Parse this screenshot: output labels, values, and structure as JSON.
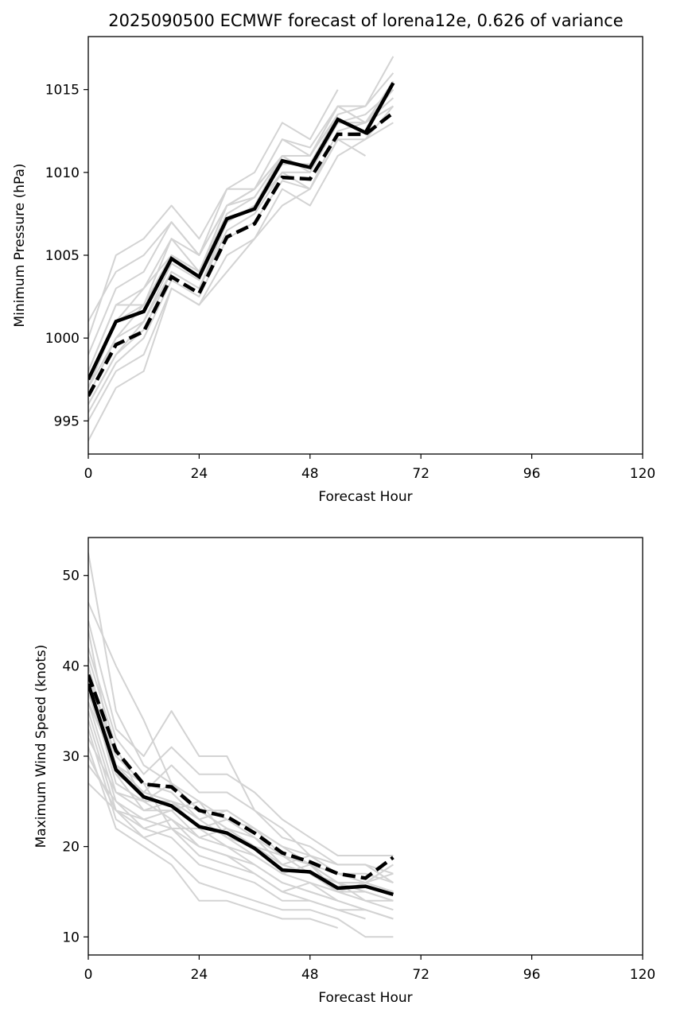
{
  "title": "2025090500 ECMWF forecast of lorena12e, 0.626 of variance",
  "chart_data": [
    {
      "type": "line",
      "name": "pressure",
      "xlabel": "Forecast Hour",
      "ylabel": "Minimum Pressure (hPa)",
      "xlim": [
        0,
        120
      ],
      "ylim": [
        993,
        1018.2
      ],
      "xticks": [
        0,
        24,
        48,
        72,
        96,
        120
      ],
      "yticks": [
        995,
        1000,
        1005,
        1010,
        1015
      ],
      "x": [
        0,
        6,
        12,
        18,
        24,
        30,
        36,
        42,
        48,
        54,
        60,
        66
      ],
      "ensemble_color": "#d3d3d3",
      "main_color": "#000000",
      "series": [
        {
          "name": "solid",
          "style": "solid",
          "values": [
            997.5,
            1001.0,
            1001.6,
            1004.8,
            1003.7,
            1007.2,
            1007.8,
            1010.7,
            1010.3,
            1013.2,
            1012.4,
            1015.4
          ]
        },
        {
          "name": "dashed",
          "style": "dashed",
          "values": [
            996.5,
            999.6,
            1000.4,
            1003.7,
            1002.7,
            1006.1,
            1006.9,
            1009.7,
            1009.6,
            1012.3,
            1012.3,
            1013.6
          ]
        }
      ],
      "ensemble": [
        [
          993.8,
          997.0,
          998.0,
          1003.0,
          1002.0,
          1004.0,
          1006.0,
          1008.0,
          1009.0,
          1012.0,
          1011.0
        ],
        [
          995.0,
          998.0,
          999.0,
          1003.0,
          1002.0,
          1005.0,
          1006.0,
          1009.0,
          1008.0,
          1011.0,
          1012.0,
          1014.0
        ],
        [
          995.5,
          998.5,
          1000.0,
          1003.5,
          1002.5,
          1006.0,
          1007.0,
          1009.5,
          1009.0,
          1012.5,
          1013.0,
          1014.5
        ],
        [
          996.0,
          999.0,
          1000.5,
          1004.0,
          1003.0,
          1006.5,
          1007.5,
          1010.0,
          1010.0,
          1013.0,
          1013.5,
          1015.0
        ],
        [
          996.5,
          1000.0,
          1001.0,
          1004.5,
          1003.5,
          1007.0,
          1008.0,
          1010.5,
          1010.5,
          1013.5,
          1014.0,
          1016.0
        ],
        [
          997.0,
          1001.0,
          1002.0,
          1005.0,
          1004.0,
          1007.5,
          1008.5,
          1011.0,
          1011.0,
          1014.0,
          1014.0,
          1017.0
        ],
        [
          998.0,
          1002.0,
          1003.0,
          1006.0,
          1005.0,
          1008.0,
          1009.0,
          1012.0,
          1011.5,
          1014.0,
          1013.0,
          1015.5
        ],
        [
          999.0,
          1003.0,
          1004.0,
          1007.0,
          1005.0,
          1009.0,
          1010.0,
          1013.0,
          1012.0,
          1015.0
        ],
        [
          1000.0,
          1005.0,
          1006.0,
          1008.0,
          1006.0,
          1009.0,
          1009.0,
          1012.0,
          1011.0,
          1014.0,
          1014.0
        ],
        [
          1001.0,
          1004.0,
          1005.0,
          1007.0,
          1005.0,
          1008.0,
          1008.5,
          1011.0,
          1011.0,
          1013.5
        ],
        [
          997.0,
          1000.0,
          1002.0,
          1006.0,
          1004.0,
          1008.0,
          1009.0,
          1011.0,
          1010.0,
          1013.0,
          1013.0,
          1014.0
        ],
        [
          998.0,
          1002.0,
          1002.0,
          1005.0,
          1004.0,
          1007.0,
          1008.0,
          1010.0,
          1009.0,
          1012.0,
          1012.0,
          1013.0
        ],
        [
          996.0,
          999.0,
          1001.0,
          1004.0,
          1003.0,
          1007.0,
          1008.0,
          1011.0,
          1010.0,
          1013.0,
          1013.0
        ],
        [
          997.0,
          1001.0,
          1003.0,
          1005.0,
          1004.0,
          1008.0,
          1009.0,
          1011.0,
          1011.0,
          1014.0,
          1013.0,
          1015.0
        ]
      ]
    },
    {
      "type": "line",
      "name": "wind",
      "xlabel": "Forecast Hour",
      "ylabel": "Maximum Wind Speed (knots)",
      "xlim": [
        0,
        120
      ],
      "ylim": [
        8,
        54.2
      ],
      "xticks": [
        0,
        24,
        48,
        72,
        96,
        120
      ],
      "yticks": [
        10,
        20,
        30,
        40,
        50
      ],
      "x": [
        0,
        6,
        12,
        18,
        24,
        30,
        36,
        42,
        48,
        54,
        60,
        66
      ],
      "ensemble_color": "#d3d3d3",
      "main_color": "#000000",
      "series": [
        {
          "name": "solid",
          "style": "solid",
          "values": [
            38.0,
            28.5,
            25.5,
            24.5,
            22.2,
            21.5,
            19.8,
            17.4,
            17.2,
            15.4,
            15.6,
            14.7
          ]
        },
        {
          "name": "dashed",
          "style": "dashed",
          "values": [
            39.0,
            30.6,
            26.9,
            26.6,
            24.0,
            23.3,
            21.5,
            19.3,
            18.3,
            17.0,
            16.5,
            18.8
          ]
        }
      ],
      "ensemble": [
        [
          52.5,
          35.0,
          29.0,
          27.0,
          25.0,
          23.0,
          22.0,
          20.0,
          18.0,
          16.0,
          14.0,
          14.0
        ],
        [
          47.0,
          40.0,
          34.0,
          27.0,
          24.0,
          24.0,
          22.0,
          20.0,
          19.0,
          17.0
        ],
        [
          45.0,
          33.0,
          30.0,
          35.0,
          30.0,
          30.0,
          24.0,
          22.0,
          19.0,
          18.0,
          18.0,
          16.0
        ],
        [
          42.0,
          32.0,
          28.0,
          31.0,
          28.0,
          28.0,
          26.0,
          23.0,
          21.0,
          19.0,
          19.0,
          19.0
        ],
        [
          40.0,
          29.0,
          26.0,
          29.0,
          26.0,
          26.0,
          24.0,
          21.0,
          20.0,
          18.0,
          18.0,
          17.0
        ],
        [
          38.0,
          27.0,
          25.0,
          27.0,
          24.0,
          22.0,
          21.0,
          19.0,
          18.0,
          17.0,
          16.0,
          15.0
        ],
        [
          36.0,
          26.0,
          24.0,
          25.0,
          23.0,
          21.0,
          20.0,
          18.0,
          17.0,
          16.0,
          15.0,
          14.0
        ],
        [
          35.0,
          25.0,
          23.0,
          24.0,
          21.0,
          20.0,
          19.0,
          17.0,
          16.0,
          15.0,
          14.0,
          13.0
        ],
        [
          34.0,
          24.0,
          22.0,
          23.0,
          20.0,
          19.0,
          18.0,
          16.0,
          15.0,
          14.0,
          13.0,
          12.0
        ],
        [
          33.0,
          23.0,
          21.0,
          22.0,
          19.0,
          18.0,
          17.0,
          15.0,
          14.0,
          13.0,
          13.0
        ],
        [
          31.0,
          22.0,
          20.0,
          18.0,
          14.0,
          14.0,
          13.0,
          12.0,
          12.0,
          11.0
        ],
        [
          30.0,
          24.0,
          21.0,
          19.0,
          16.0,
          15.0,
          14.0,
          13.0,
          13.0,
          12.0,
          10.0,
          10.0
        ],
        [
          29.0,
          25.0,
          22.0,
          21.0,
          18.0,
          17.0,
          16.0,
          14.0,
          14.0,
          13.0,
          12.0
        ],
        [
          27.0,
          24.0,
          23.0,
          22.0,
          20.0,
          19.0,
          17.0,
          15.0,
          16.0,
          14.0,
          13.0,
          12.0
        ],
        [
          37.0,
          28.0,
          26.0,
          25.0,
          22.0,
          23.0,
          21.0,
          18.0,
          17.0,
          15.0,
          15.0,
          14.0
        ],
        [
          39.0,
          30.0,
          27.0,
          26.0,
          23.0,
          24.0,
          22.0,
          19.0,
          18.0,
          16.0,
          16.0,
          15.0
        ],
        [
          41.0,
          31.0,
          25.0,
          23.0,
          21.0,
          22.0,
          20.0,
          18.0,
          19.0,
          17.0,
          17.0,
          16.0
        ],
        [
          44.0,
          28.0,
          24.0,
          24.0,
          25.0,
          21.0,
          19.0,
          17.0,
          18.0,
          15.0,
          16.0,
          18.0
        ],
        [
          36.0,
          29.0,
          27.0,
          22.0,
          22.0,
          20.0,
          18.0,
          16.0,
          15.0,
          14.0
        ],
        [
          32.0,
          26.0,
          25.0,
          25.0,
          24.0,
          22.0,
          20.0,
          19.0,
          17.0,
          16.0,
          16.0,
          17.0
        ]
      ]
    }
  ]
}
